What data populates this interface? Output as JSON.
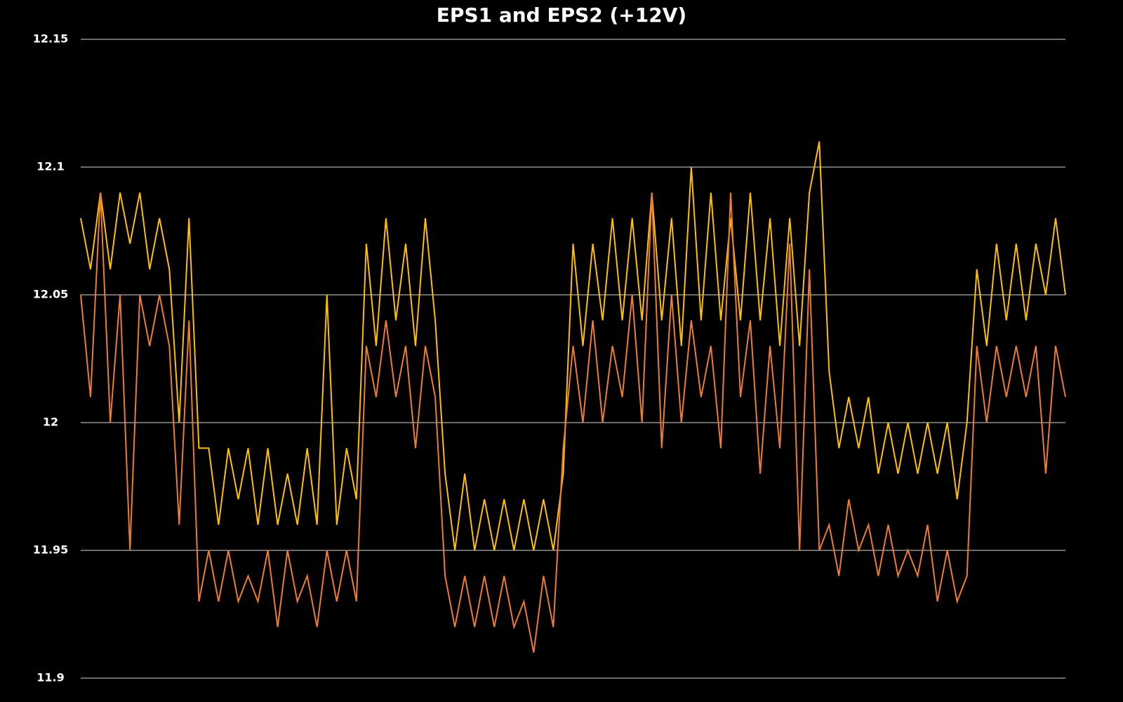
{
  "chart_data": {
    "type": "line",
    "title": "EPS1 and EPS2 (+12V)",
    "ylim": [
      11.9,
      12.15
    ],
    "yticks": [
      11.9,
      11.95,
      12,
      12.05,
      12.1,
      12.15
    ],
    "grid": true,
    "series": [
      {
        "color": "#FFC000",
        "values": [
          12.08,
          12.06,
          12.09,
          12.06,
          12.09,
          12.07,
          12.09,
          12.06,
          12.08,
          12.06,
          12.0,
          12.08,
          11.99,
          11.99,
          11.96,
          11.99,
          11.97,
          11.99,
          11.96,
          11.99,
          11.96,
          11.98,
          11.96,
          11.99,
          11.96,
          12.05,
          11.96,
          11.99,
          11.97,
          12.07,
          12.03,
          12.08,
          12.04,
          12.07,
          12.03,
          12.08,
          12.04,
          11.98,
          11.95,
          11.98,
          11.95,
          11.97,
          11.95,
          11.97,
          11.95,
          11.97,
          11.95,
          11.97,
          11.95,
          11.98,
          12.07,
          12.03,
          12.07,
          12.04,
          12.08,
          12.04,
          12.08,
          12.04,
          12.09,
          12.04,
          12.08,
          12.03,
          12.1,
          12.04,
          12.09,
          12.04,
          12.08,
          12.04,
          12.09,
          12.04,
          12.08,
          12.03,
          12.08,
          12.03,
          12.09,
          12.11,
          12.02,
          11.99,
          12.01,
          11.99,
          12.01,
          11.98,
          12.0,
          11.98,
          12.0,
          11.98,
          12.0,
          11.98,
          12.0,
          11.97,
          12.0,
          12.06,
          12.03,
          12.07,
          12.04,
          12.07,
          12.04,
          12.07,
          12.05,
          12.08,
          12.05
        ]
      },
      {
        "color": "#ED7D31",
        "values": [
          12.05,
          12.01,
          12.09,
          12.0,
          12.05,
          11.95,
          12.05,
          12.03,
          12.05,
          12.03,
          11.96,
          12.04,
          11.93,
          11.95,
          11.93,
          11.95,
          11.93,
          11.94,
          11.93,
          11.95,
          11.92,
          11.95,
          11.93,
          11.94,
          11.92,
          11.95,
          11.93,
          11.95,
          11.93,
          12.03,
          12.01,
          12.04,
          12.01,
          12.03,
          11.99,
          12.03,
          12.01,
          11.94,
          11.92,
          11.94,
          11.92,
          11.94,
          11.92,
          11.94,
          11.92,
          11.93,
          11.91,
          11.94,
          11.92,
          11.99,
          12.03,
          12.0,
          12.04,
          12.0,
          12.03,
          12.01,
          12.05,
          12.0,
          12.09,
          11.99,
          12.05,
          12.0,
          12.04,
          12.01,
          12.03,
          11.99,
          12.09,
          12.01,
          12.04,
          11.98,
          12.03,
          11.99,
          12.07,
          11.95,
          12.06,
          11.95,
          11.96,
          11.94,
          11.97,
          11.95,
          11.96,
          11.94,
          11.96,
          11.94,
          11.95,
          11.94,
          11.96,
          11.93,
          11.95,
          11.93,
          11.94,
          12.03,
          12.0,
          12.03,
          12.01,
          12.03,
          12.01,
          12.03,
          11.98,
          12.03,
          12.01
        ]
      }
    ]
  }
}
